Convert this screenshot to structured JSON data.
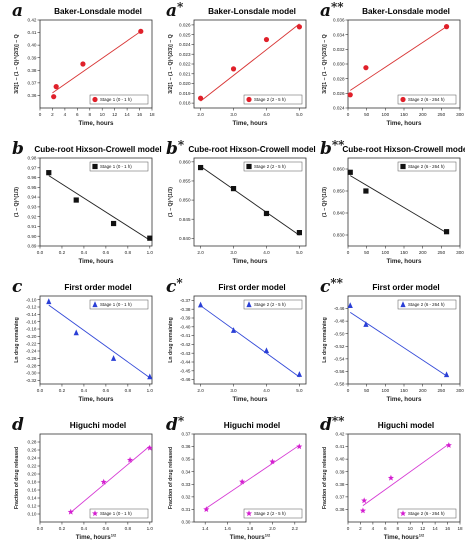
{
  "chart_data": [
    {
      "letter": "a",
      "title": "Baker-Lonsdale model",
      "type": "scatter",
      "xlabel": "Time, hours",
      "ylabel": "3/2[1 − (1 − Q)^(2/3)] − Q",
      "xlim": [
        0,
        18
      ],
      "ylim": [
        0.35,
        0.42
      ],
      "xticks": [
        "0",
        "2",
        "4",
        "6",
        "8",
        "10",
        "12",
        "14",
        "16",
        "18"
      ],
      "yticks": [
        "0.36",
        "0.37",
        "0.38",
        "0.39",
        "0.40",
        "0.41",
        "0.42"
      ],
      "legend": "Stage 1 (0 - 1 h)",
      "legend_pos": "bottom-right",
      "point_color": "#e0202a",
      "line_color": "#d83535",
      "marker": "circle",
      "x": [
        2.2,
        2.6,
        6.9,
        16.2
      ],
      "y": [
        0.359,
        0.367,
        0.385,
        0.411
      ],
      "fit": [
        [
          2,
          0.362
        ],
        [
          16.5,
          0.412
        ]
      ]
    },
    {
      "letter": "a*",
      "title": "Baker-Lonsdale model",
      "type": "scatter",
      "xlabel": "Time, hours",
      "ylabel": "3/2[1 − (1 − Q)^(2/3)] − Q",
      "xlim": [
        1.8,
        5.2
      ],
      "ylim": [
        0.0175,
        0.0265
      ],
      "xticks": [
        "2.0",
        "3.0",
        "4.0",
        "5.0"
      ],
      "yticks": [
        "0.018",
        "0.019",
        "0.020",
        "0.021",
        "0.022",
        "0.023",
        "0.024",
        "0.025",
        "0.026"
      ],
      "legend": "Stage 2 (2 - 5 h)",
      "legend_pos": "bottom-right",
      "point_color": "#e0202a",
      "line_color": "#d83535",
      "marker": "circle",
      "x": [
        2.0,
        3.0,
        4.0,
        5.0
      ],
      "y": [
        0.0185,
        0.0215,
        0.0245,
        0.0258
      ],
      "fit": [
        [
          2.0,
          0.0182
        ],
        [
          5.0,
          0.0261
        ]
      ]
    },
    {
      "letter": "a**",
      "title": "Baker-Lonsdale model",
      "type": "scatter",
      "xlabel": "Time, hours",
      "ylabel": "3/2[1 − (1 − Q)^(2/3)] − Q",
      "xlim": [
        0,
        300
      ],
      "ylim": [
        0.024,
        0.036
      ],
      "xticks": [
        "0",
        "50",
        "100",
        "150",
        "200",
        "250",
        "300"
      ],
      "yticks": [
        "0.024",
        "0.026",
        "0.028",
        "0.030",
        "0.032",
        "0.034",
        "0.036"
      ],
      "legend": "Stage 2 (6 - 264 h)",
      "legend_pos": "bottom-right",
      "point_color": "#e0202a",
      "line_color": "#d83535",
      "marker": "circle",
      "x": [
        6,
        48,
        264
      ],
      "y": [
        0.0258,
        0.0295,
        0.0351
      ],
      "fit": [
        [
          6,
          0.0264
        ],
        [
          264,
          0.0351
        ]
      ]
    },
    {
      "letter": "b",
      "title": "Cube-root Hixson-Crowell model",
      "type": "scatter",
      "xlabel": "Time, hours",
      "ylabel": "(1 − Q)^(1/3)",
      "xlim": [
        0,
        1.02
      ],
      "ylim": [
        0.89,
        0.98
      ],
      "xticks": [
        "0.0",
        "0.2",
        "0.4",
        "0.6",
        "0.8",
        "1.0"
      ],
      "yticks": [
        "0.89",
        "0.90",
        "0.91",
        "0.92",
        "0.93",
        "0.94",
        "0.95",
        "0.96",
        "0.97",
        "0.98"
      ],
      "legend": "Stage 1 (0 - 1 h)",
      "legend_pos": "top-right",
      "point_color": "#111111",
      "line_color": "#222222",
      "marker": "square",
      "x": [
        0.08,
        0.33,
        0.67,
        1.0
      ],
      "y": [
        0.965,
        0.937,
        0.913,
        0.898
      ],
      "fit": [
        [
          0.08,
          0.962
        ],
        [
          1.0,
          0.896
        ]
      ]
    },
    {
      "letter": "b*",
      "title": "Cube-root Hixson-Crowell model",
      "type": "scatter",
      "xlabel": "Time, hours",
      "ylabel": "(1 − Q)^(1/3)",
      "xlim": [
        1.8,
        5.2
      ],
      "ylim": [
        0.838,
        0.861
      ],
      "xticks": [
        "2.0",
        "3.0",
        "4.0",
        "5.0"
      ],
      "yticks": [
        "0.840",
        "0.845",
        "0.850",
        "0.855",
        "0.860"
      ],
      "legend": "Stage 2 (2 - 5 h)",
      "legend_pos": "top-right",
      "point_color": "#111111",
      "line_color": "#222222",
      "marker": "square",
      "x": [
        2.0,
        3.0,
        4.0,
        5.0
      ],
      "y": [
        0.8585,
        0.853,
        0.8465,
        0.8415
      ],
      "fit": [
        [
          2.0,
          0.8588
        ],
        [
          5.0,
          0.8408
        ]
      ]
    },
    {
      "letter": "b**",
      "title": "Cube-root Hixson-Crowell model",
      "type": "scatter",
      "xlabel": "Time, hours",
      "ylabel": "(1 − Q)^(1/3)",
      "xlim": [
        0,
        300
      ],
      "ylim": [
        0.825,
        0.865
      ],
      "xticks": [
        "0",
        "50",
        "100",
        "150",
        "200",
        "250",
        "300"
      ],
      "yticks": [
        "0.830",
        "0.840",
        "0.850",
        "0.860"
      ],
      "legend": "Stage 2 (6 - 264 h)",
      "legend_pos": "top-right",
      "point_color": "#111111",
      "line_color": "#222222",
      "marker": "square",
      "x": [
        6,
        48,
        264
      ],
      "y": [
        0.8585,
        0.85,
        0.8315
      ],
      "fit": [
        [
          6,
          0.857
        ],
        [
          264,
          0.831
        ]
      ]
    },
    {
      "letter": "c",
      "title": "First order model",
      "type": "scatter",
      "xlabel": "Time, hours",
      "ylabel": "Ln drug remaining",
      "xlim": [
        0,
        1.02
      ],
      "ylim": [
        -0.33,
        -0.09
      ],
      "xticks": [
        "0.0",
        "0.2",
        "0.4",
        "0.6",
        "0.8",
        "1.0"
      ],
      "yticks": [
        "-0.32",
        "-0.30",
        "-0.28",
        "-0.26",
        "-0.24",
        "-0.22",
        "-0.20",
        "-0.18",
        "-0.16",
        "-0.14",
        "-0.12",
        "-0.10"
      ],
      "legend": "Stage 1 (0 - 1 h)",
      "legend_pos": "top-right",
      "point_color": "#2a3fd6",
      "line_color": "#3349d8",
      "marker": "triangle",
      "x": [
        0.08,
        0.33,
        0.67,
        1.0
      ],
      "y": [
        -0.105,
        -0.19,
        -0.26,
        -0.31
      ],
      "fit": [
        [
          0.08,
          -0.115
        ],
        [
          1.0,
          -0.313
        ]
      ]
    },
    {
      "letter": "c*",
      "title": "First order model",
      "type": "scatter",
      "xlabel": "Time, hours",
      "ylabel": "Ln drug remaining",
      "xlim": [
        1.8,
        5.2
      ],
      "ylim": [
        -0.465,
        -0.365
      ],
      "xticks": [
        "2.0",
        "3.0",
        "4.0",
        "5.0"
      ],
      "yticks": [
        "-0.46",
        "-0.45",
        "-0.44",
        "-0.43",
        "-0.42",
        "-0.41",
        "-0.40",
        "-0.39",
        "-0.38",
        "-0.37"
      ],
      "legend": "Stage 2 (2 - 5 h)",
      "legend_pos": "top-right",
      "point_color": "#2a3fd6",
      "line_color": "#3349d8",
      "marker": "triangle",
      "x": [
        2.0,
        3.0,
        4.0,
        5.0
      ],
      "y": [
        -0.375,
        -0.404,
        -0.427,
        -0.454
      ],
      "fit": [
        [
          2.0,
          -0.376
        ],
        [
          5.0,
          -0.457
        ]
      ]
    },
    {
      "letter": "c**",
      "title": "First order model",
      "type": "scatter",
      "xlabel": "Time, hours",
      "ylabel": "Ln drug remaining",
      "xlim": [
        0,
        300
      ],
      "ylim": [
        -0.58,
        -0.44
      ],
      "xticks": [
        "0",
        "50",
        "100",
        "150",
        "200",
        "250",
        "300"
      ],
      "yticks": [
        "-0.58",
        "-0.56",
        "-0.54",
        "-0.52",
        "-0.50",
        "-0.48",
        "-0.46"
      ],
      "legend": "Stage 2 (6 - 264 h)",
      "legend_pos": "top-right",
      "point_color": "#2a3fd6",
      "line_color": "#3349d8",
      "marker": "triangle",
      "x": [
        6,
        48,
        264
      ],
      "y": [
        -0.455,
        -0.485,
        -0.565
      ],
      "fit": [
        [
          6,
          -0.466
        ],
        [
          264,
          -0.567
        ]
      ]
    },
    {
      "letter": "d",
      "title": "Higuchi model",
      "type": "scatter",
      "xlabel": "Time, hours^(1/2)",
      "ylabel": "Fraction of drug released",
      "xlim": [
        0,
        1.02
      ],
      "ylim": [
        0.08,
        0.3
      ],
      "xticks": [
        "0.0",
        "0.2",
        "0.4",
        "0.6",
        "0.8",
        "1.0"
      ],
      "yticks": [
        "0.10",
        "0.12",
        "0.14",
        "0.16",
        "0.18",
        "0.20",
        "0.22",
        "0.24",
        "0.26",
        "0.28"
      ],
      "legend": "Stage 1 (0 - 1 h)",
      "legend_pos": "bottom-right",
      "point_color": "#d41fd0",
      "line_color": "#d63ad4",
      "marker": "star",
      "x": [
        0.28,
        0.58,
        0.82,
        1.0
      ],
      "y": [
        0.105,
        0.18,
        0.235,
        0.265
      ],
      "fit": [
        [
          0.28,
          0.104
        ],
        [
          1.0,
          0.27
        ]
      ]
    },
    {
      "letter": "d*",
      "title": "Higuchi model",
      "type": "scatter",
      "xlabel": "Time, hours^(1/2)",
      "ylabel": "Fraction of drug released",
      "xlim": [
        1.3,
        2.3
      ],
      "ylim": [
        0.3,
        0.37
      ],
      "xticks": [
        "1.4",
        "1.6",
        "1.8",
        "2.0",
        "2.2"
      ],
      "yticks": [
        "0.30",
        "0.31",
        "0.32",
        "0.33",
        "0.34",
        "0.35",
        "0.36",
        "0.37"
      ],
      "legend": "Stage 2 (2 - 5 h)",
      "legend_pos": "bottom-right",
      "point_color": "#d41fd0",
      "line_color": "#d63ad4",
      "marker": "star",
      "x": [
        1.41,
        1.73,
        2.0,
        2.24
      ],
      "y": [
        0.31,
        0.332,
        0.348,
        0.36
      ],
      "fit": [
        [
          1.41,
          0.311
        ],
        [
          2.24,
          0.361
        ]
      ]
    },
    {
      "letter": "d**",
      "title": "Higuchi model",
      "type": "scatter",
      "xlabel": "Time, hours^(1/2)",
      "ylabel": "Fraction of drug released",
      "xlim": [
        0,
        18
      ],
      "ylim": [
        0.35,
        0.42
      ],
      "xticks": [
        "0",
        "2",
        "4",
        "6",
        "8",
        "10",
        "12",
        "14",
        "16",
        "18"
      ],
      "yticks": [
        "0.36",
        "0.37",
        "0.38",
        "0.39",
        "0.40",
        "0.41",
        "0.42"
      ],
      "legend": "Stage 2 (6 - 264 h)",
      "legend_pos": "bottom-right",
      "point_color": "#d41fd0",
      "line_color": "#d63ad4",
      "marker": "star",
      "x": [
        2.4,
        2.6,
        6.9,
        16.2
      ],
      "y": [
        0.359,
        0.367,
        0.385,
        0.411
      ],
      "fit": [
        [
          2.4,
          0.363
        ],
        [
          16.2,
          0.412
        ]
      ]
    }
  ]
}
